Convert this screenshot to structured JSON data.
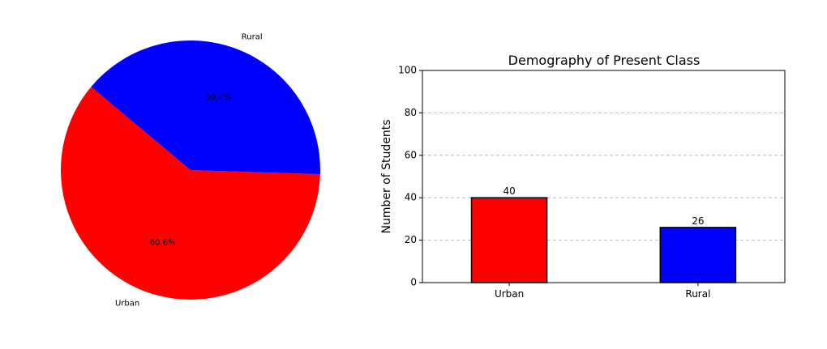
{
  "chart_data": [
    {
      "type": "pie",
      "labels": [
        "Urban",
        "Rural"
      ],
      "values": [
        40,
        26
      ],
      "autopct": [
        "60.6%",
        "39.4%"
      ],
      "colors": [
        "#ff0000",
        "#0000ff"
      ],
      "title": ""
    },
    {
      "type": "bar",
      "title": "Demography of Present Class",
      "categories": [
        "Urban",
        "Rural"
      ],
      "values": [
        40,
        26
      ],
      "value_labels": [
        "40",
        "26"
      ],
      "colors": [
        "#ff0000",
        "#0000ff"
      ],
      "xlabel": "",
      "ylabel": "Number of Students",
      "ylim": [
        0,
        100
      ],
      "yticks": [
        "0",
        "20",
        "40",
        "60",
        "80",
        "100"
      ],
      "grid": "y-dashed"
    }
  ]
}
